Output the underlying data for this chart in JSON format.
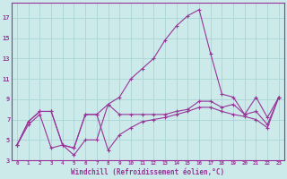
{
  "xlabel": "Windchill (Refroidissement éolien,°C)",
  "bg_color": "#cceaea",
  "grid_color": "#aad4d4",
  "line_color": "#993399",
  "x_ticks": [
    0,
    1,
    2,
    3,
    4,
    5,
    6,
    7,
    8,
    9,
    10,
    11,
    12,
    13,
    14,
    15,
    16,
    17,
    18,
    19,
    20,
    21,
    22,
    23
  ],
  "y_ticks": [
    3,
    5,
    7,
    9,
    11,
    13,
    15,
    17
  ],
  "xlim": [
    -0.5,
    23.5
  ],
  "ylim": [
    3,
    18.5
  ],
  "series1_x": [
    0,
    1,
    2,
    3,
    4,
    5,
    6,
    7,
    8,
    9,
    10,
    11,
    12,
    13,
    14,
    15,
    16,
    17,
    18,
    19,
    20,
    21,
    22,
    23
  ],
  "series1_y": [
    4.5,
    6.5,
    7.5,
    4.2,
    4.5,
    3.5,
    5.0,
    5.0,
    8.5,
    9.2,
    11.0,
    12.0,
    13.0,
    14.8,
    16.2,
    17.2,
    17.8,
    13.5,
    9.5,
    9.2,
    7.5,
    7.8,
    6.5,
    9.2
  ],
  "series2_x": [
    0,
    1,
    2,
    3,
    4,
    5,
    6,
    7,
    8,
    9,
    10,
    11,
    12,
    13,
    14,
    15,
    16,
    17,
    18,
    19,
    20,
    21,
    22,
    23
  ],
  "series2_y": [
    4.5,
    6.8,
    7.8,
    7.8,
    4.5,
    4.2,
    7.5,
    7.5,
    8.5,
    7.5,
    7.5,
    7.5,
    7.5,
    7.5,
    7.8,
    8.0,
    8.8,
    8.8,
    8.2,
    8.5,
    7.5,
    9.2,
    7.2,
    9.2
  ],
  "series3_x": [
    0,
    1,
    2,
    3,
    4,
    5,
    6,
    7,
    8,
    9,
    10,
    11,
    12,
    13,
    14,
    15,
    16,
    17,
    18,
    19,
    20,
    21,
    22,
    23
  ],
  "series3_y": [
    4.5,
    6.8,
    7.8,
    7.8,
    4.5,
    4.2,
    7.5,
    7.5,
    4.0,
    5.5,
    6.2,
    6.8,
    7.0,
    7.2,
    7.5,
    7.8,
    8.2,
    8.2,
    7.8,
    7.5,
    7.3,
    7.0,
    6.2,
    9.2
  ]
}
